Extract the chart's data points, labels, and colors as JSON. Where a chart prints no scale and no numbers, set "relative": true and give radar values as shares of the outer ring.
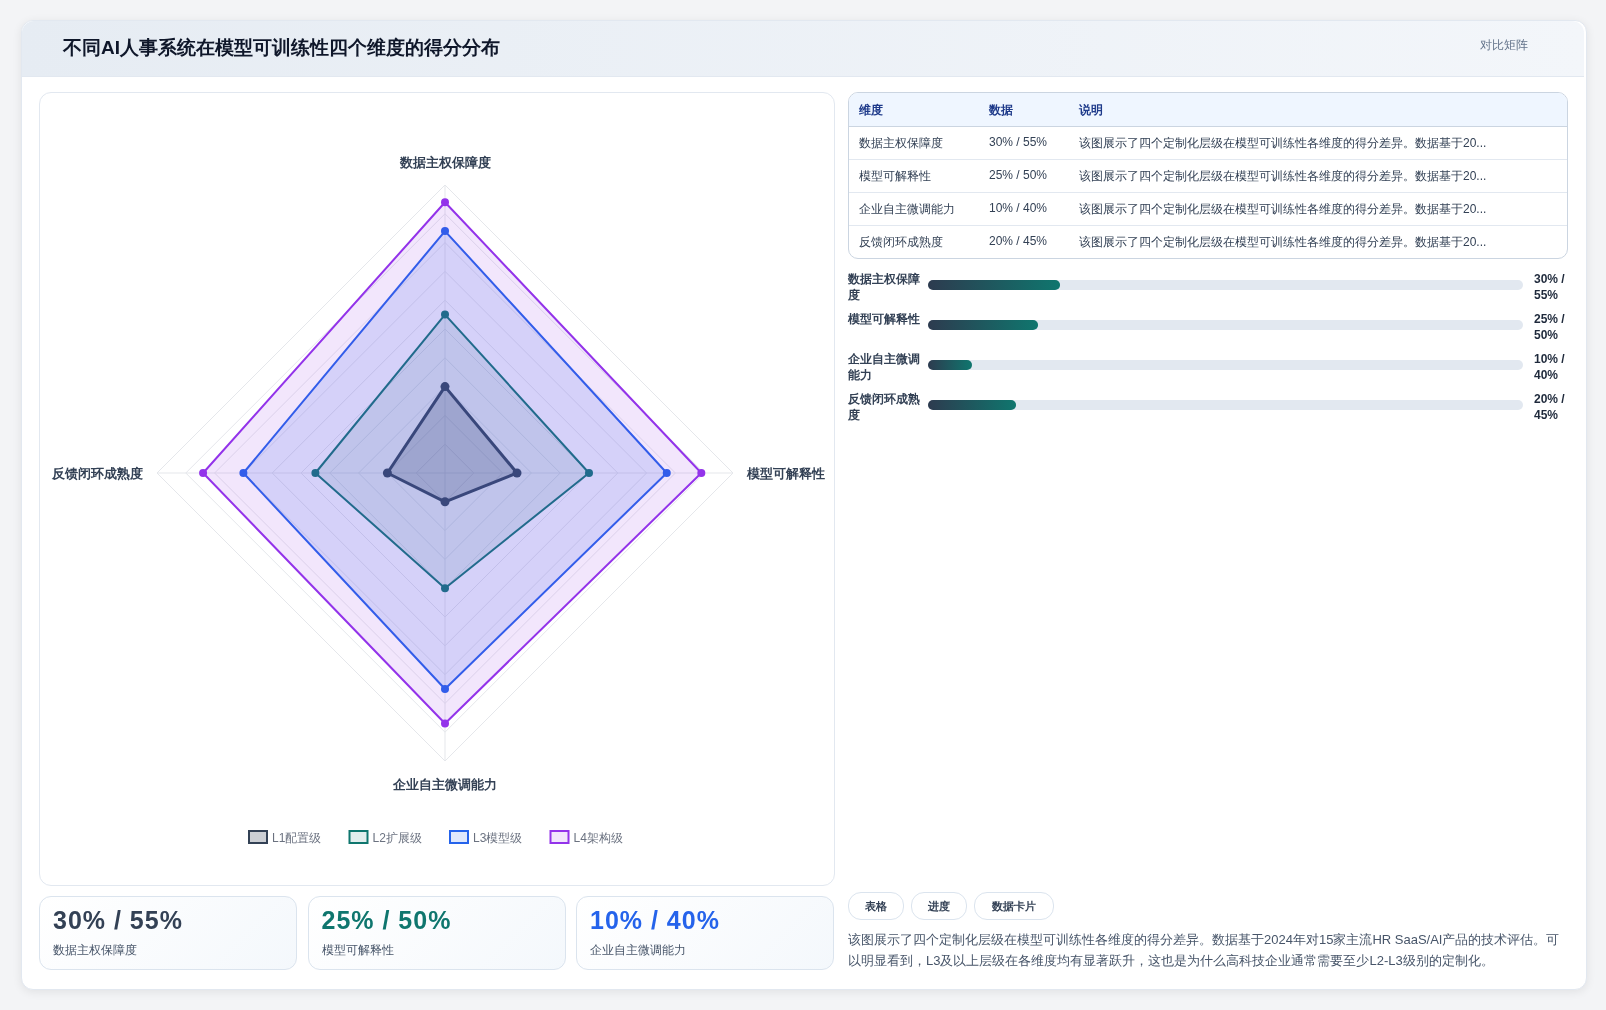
{
  "chart_data": [
    {
      "type": "radar",
      "title": "不同AI人事系统在模型可训练性四个维度的得分分布",
      "categories": [
        "数据主权保障度",
        "模型可解释性",
        "企业自主微调能力",
        "反馈闭环成熟度"
      ],
      "relative": true,
      "grid": true,
      "legend": "bottom",
      "marker": "circle",
      "series": [
        {
          "name": "L1配置级",
          "color": "#334155",
          "values": [
            0.3,
            0.25,
            0.1,
            0.2
          ]
        },
        {
          "name": "L2扩展级",
          "color": "#0f766e",
          "values": [
            0.55,
            0.5,
            0.4,
            0.45
          ]
        },
        {
          "name": "L3模型级",
          "color": "#2563eb",
          "values": [
            0.84,
            0.77,
            0.75,
            0.7
          ]
        },
        {
          "name": "L4架构级",
          "color": "#9333ea",
          "values": [
            0.94,
            0.89,
            0.87,
            0.84
          ]
        }
      ]
    },
    {
      "type": "other",
      "title": "对比矩阵",
      "annotations": [
        "维度",
        "数据",
        "说明",
        "数据主权保障度",
        "30% / 55%",
        "该图展示了四个定制化层级在模型可训练性各维度的得分差异。数据基于20...",
        "模型可解释性",
        "25% / 50%",
        "该图展示了四个定制化层级在模型可训练性各维度的得分差异。数据基于20...",
        "企业自主微调能力",
        "10% / 40%",
        "该图展示了四个定制化层级在模型可训练性各维度的得分差异。数据基于20...",
        "反馈闭环成熟度",
        "20% / 45%",
        "该图展示了四个定制化层级在模型可训练性各维度的得分差异。数据基于20..."
      ]
    },
    {
      "type": "bar",
      "orientation": "horizontal",
      "categories": [
        "数据主权保障度",
        "模型可解释性",
        "企业自主微调能力",
        "反馈闭环成熟度"
      ],
      "values": [
        30,
        25,
        10,
        20
      ],
      "value_labels": [
        "30% / 55%",
        "25% / 50%",
        "10% / 40%",
        "20% / 45%"
      ],
      "color": "#0f766e"
    },
    {
      "type": "other",
      "annotations": [
        "30% / 55%",
        "数据主权保障度",
        "25% / 50%",
        "模型可解释性",
        "10% / 40%",
        "企业自主微调能力"
      ]
    },
    {
      "type": "other",
      "annotations": [
        "表格",
        "进度",
        "数据卡片",
        "该图展示了四个定制化层级在模型可训练性各维度的得分差异。数据基于2024年对15家主流HR SaaS/AI产品的技术评估。可以明显看到，L3及以上层级在各维度均有显著跃升，这也是为什么高科技企业通常需要至少L2-L3级别的定制化。"
      ]
    }
  ]
}
